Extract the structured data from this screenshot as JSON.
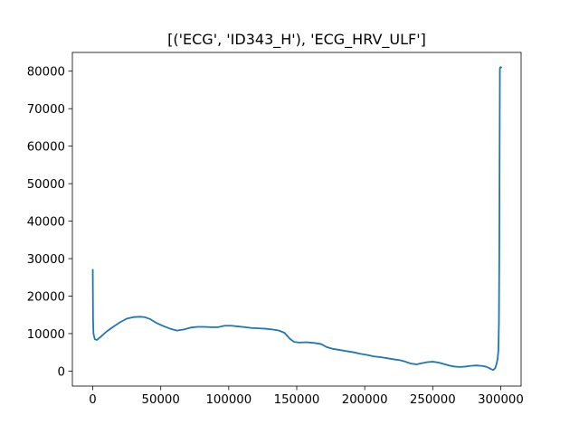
{
  "chart_data": {
    "type": "line",
    "title": "[('ECG', 'ID343_H'), 'ECG_HRV_ULF']",
    "xlabel": "",
    "ylabel": "",
    "xlim": [
      -15000,
      315000
    ],
    "ylim": [
      -4000,
      85000
    ],
    "grid": false,
    "x_ticks": [
      0,
      50000,
      100000,
      150000,
      200000,
      250000,
      300000
    ],
    "y_ticks": [
      0,
      10000,
      20000,
      30000,
      40000,
      50000,
      60000,
      70000,
      80000
    ],
    "x_tick_labels": [
      "0",
      "50000",
      "100000",
      "150000",
      "200000",
      "250000",
      "300000"
    ],
    "y_tick_labels": [
      "0",
      "10000",
      "20000",
      "30000",
      "40000",
      "50000",
      "60000",
      "70000",
      "80000"
    ],
    "series": [
      {
        "color": "#1f77b4",
        "x": [
          0,
          200,
          500,
          1500,
          3000,
          6000,
          10000,
          15000,
          20000,
          25000,
          30000,
          35000,
          38000,
          42000,
          47000,
          52000,
          57000,
          62000,
          67000,
          72000,
          77000,
          82000,
          87000,
          92000,
          97000,
          102000,
          107000,
          112000,
          117000,
          122000,
          127000,
          132000,
          137000,
          141000,
          145000,
          148000,
          152000,
          157000,
          163000,
          168000,
          172000,
          177000,
          182000,
          187000,
          192000,
          197000,
          202000,
          207000,
          212000,
          217000,
          222000,
          226000,
          230000,
          234000,
          238000,
          242000,
          246000,
          250000,
          254000,
          258000,
          262000,
          266000,
          270000,
          274000,
          278000,
          282000,
          286000,
          289000,
          291000,
          293000,
          294500,
          296000,
          297000,
          297800,
          298300,
          298700,
          299000,
          299200,
          299400,
          299600,
          299800,
          300000,
          300300
        ],
        "y": [
          27000,
          14000,
          10000,
          8500,
          8300,
          9200,
          10500,
          11800,
          13000,
          14000,
          14400,
          14500,
          14400,
          13900,
          12800,
          12000,
          11300,
          10800,
          11100,
          11600,
          11800,
          11800,
          11700,
          11700,
          12100,
          12100,
          11900,
          11700,
          11500,
          11400,
          11300,
          11100,
          10800,
          10200,
          8600,
          7800,
          7600,
          7700,
          7500,
          7200,
          6400,
          5900,
          5600,
          5300,
          5000,
          4600,
          4300,
          3900,
          3700,
          3400,
          3100,
          2900,
          2500,
          2000,
          1800,
          2100,
          2400,
          2500,
          2300,
          1900,
          1500,
          1200,
          1100,
          1200,
          1400,
          1500,
          1400,
          1200,
          900,
          500,
          300,
          800,
          2000,
          3500,
          5500,
          13000,
          35000,
          60000,
          80800,
          81000,
          81000,
          81100,
          81000
        ]
      }
    ]
  }
}
